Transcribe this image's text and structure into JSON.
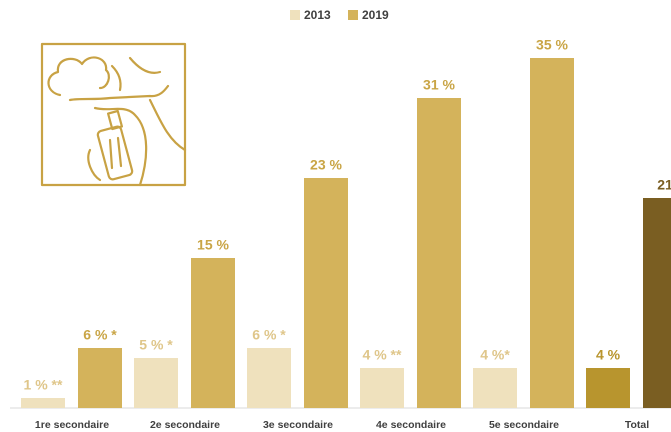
{
  "chart_data": {
    "type": "bar",
    "categories": [
      "1re secondaire",
      "2e secondaire",
      "3e secondaire",
      "4e secondaire",
      "5e secondaire",
      "Total"
    ],
    "series": [
      {
        "name": "2013",
        "color": "#efe1bd",
        "label_color": "#dfc68a",
        "colors": [
          "#efe1bd",
          "#efe1bd",
          "#efe1bd",
          "#efe1bd",
          "#efe1bd",
          "#b8952e"
        ],
        "values": [
          1,
          5,
          6,
          4,
          4,
          4
        ],
        "value_labels": [
          "1 % **",
          "5 % *",
          "6 % *",
          "4 % **",
          "4 %*",
          "4 %"
        ]
      },
      {
        "name": "2019",
        "color": "#d4b35b",
        "label_color": "#c9a546",
        "colors": [
          "#d4b35b",
          "#d4b35b",
          "#d4b35b",
          "#d4b35b",
          "#d4b35b",
          "#7a5e22"
        ],
        "values": [
          6,
          15,
          23,
          31,
          35,
          21
        ],
        "value_labels": [
          "6 % *",
          "15 %",
          "23 %",
          "31 %",
          "35 %",
          "21"
        ]
      }
    ]
  }
}
